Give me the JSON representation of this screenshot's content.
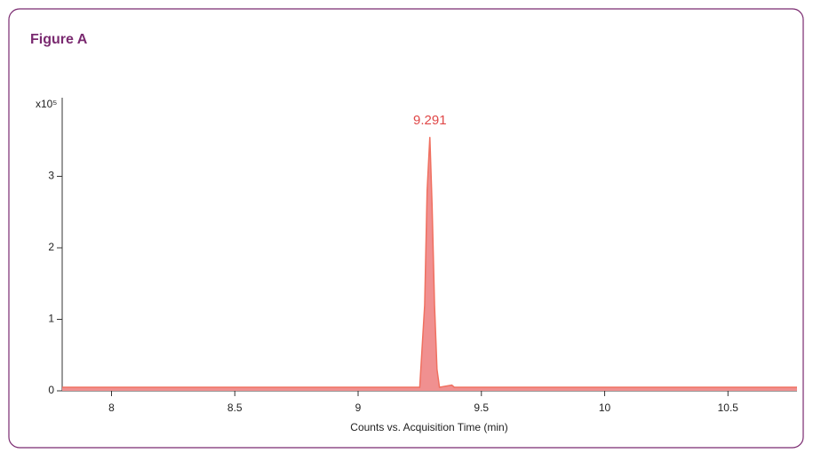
{
  "chart_data": {
    "type": "area",
    "title": "Figure A",
    "y_axis_label": "x10⁵",
    "x_axis_label": "Counts vs. Acquisition Time (min)",
    "x": [
      7.8,
      9.25,
      9.27,
      9.28,
      9.291,
      9.3,
      9.31,
      9.32,
      9.33,
      9.38,
      9.39,
      10.78
    ],
    "series": [
      {
        "color": "#f07060",
        "fill": "#f09090",
        "values": [
          0.05,
          0.05,
          1.2,
          2.8,
          3.55,
          2.6,
          1.2,
          0.3,
          0.05,
          0.08,
          0.05,
          0.05
        ]
      }
    ],
    "annotations": [
      {
        "x": 9.291,
        "y": 3.55,
        "text": "9.291",
        "color": "#e04848"
      }
    ],
    "xlim": [
      7.8,
      10.78
    ],
    "xticks": [
      8,
      8.5,
      9,
      9.5,
      10,
      10.5
    ],
    "ylim": [
      0,
      4
    ],
    "yticks": [
      0,
      1,
      2,
      3
    ]
  }
}
